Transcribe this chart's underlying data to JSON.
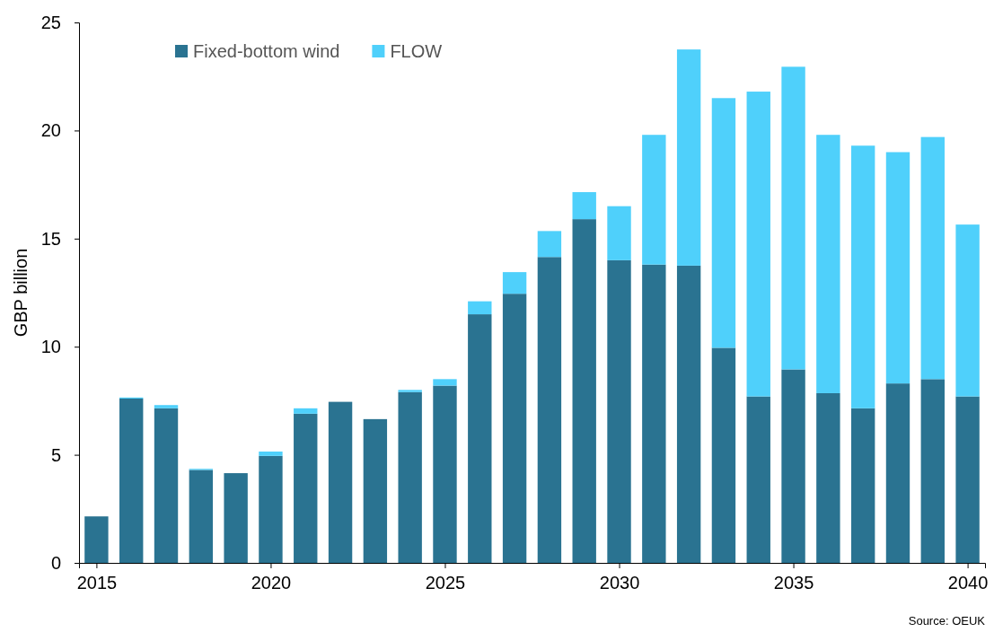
{
  "chart_data": {
    "type": "bar",
    "stacked": true,
    "ylabel": "GBP billion",
    "x": [
      2015,
      2016,
      2017,
      2018,
      2019,
      2020,
      2021,
      2022,
      2023,
      2024,
      2025,
      2026,
      2027,
      2028,
      2029,
      2030,
      2031,
      2032,
      2033,
      2034,
      2035,
      2036,
      2037,
      2038,
      2039,
      2040
    ],
    "series": [
      {
        "name": "Fixed-bottom wind",
        "color": "#2a7391",
        "values": [
          2.15,
          7.6,
          7.15,
          4.3,
          4.15,
          4.95,
          6.9,
          7.45,
          6.65,
          7.9,
          8.2,
          11.5,
          12.45,
          14.15,
          15.9,
          14.0,
          13.8,
          13.75,
          9.95,
          7.7,
          8.95,
          7.85,
          7.15,
          8.3,
          8.5,
          7.7
        ]
      },
      {
        "name": "FLOW",
        "color": "#4fd0fb",
        "values": [
          0,
          0.05,
          0.15,
          0.05,
          0,
          0.2,
          0.25,
          0,
          0,
          0.1,
          0.3,
          0.6,
          1.0,
          1.2,
          1.25,
          2.5,
          6.0,
          10.0,
          11.55,
          14.1,
          14.0,
          11.95,
          12.15,
          10.7,
          11.2,
          7.95
        ]
      }
    ],
    "xlim": [
      2014.5,
      2040.5
    ],
    "xticks": [
      2015,
      2020,
      2025,
      2030,
      2035,
      2040
    ],
    "ylim": [
      0,
      25
    ],
    "yticks": [
      0,
      5,
      10,
      15,
      20,
      25
    ],
    "grid": false,
    "legend": "top left",
    "annotations": [
      "Source: OEUK"
    ]
  }
}
